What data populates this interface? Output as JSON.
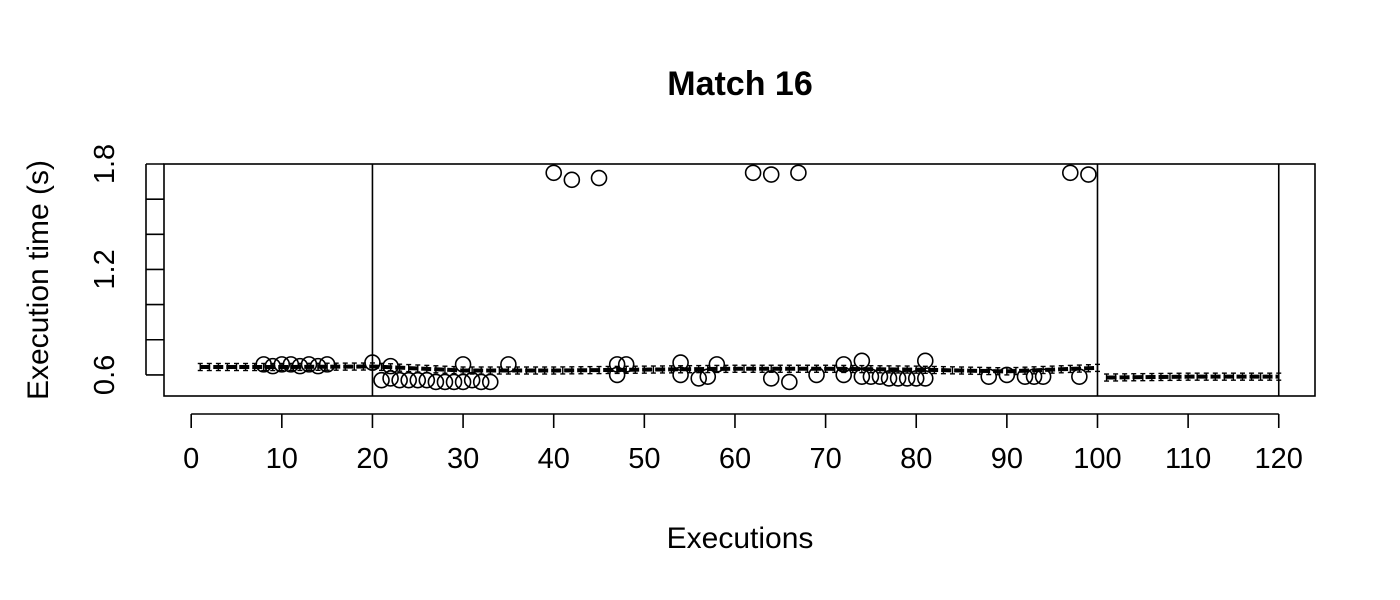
{
  "chart_data": {
    "type": "scatter",
    "title": "Match 16",
    "xlabel": "Executions",
    "ylabel": "Execution time (s)",
    "xlim": [
      -3,
      124
    ],
    "ylim": [
      0.48,
      1.8
    ],
    "x_ticks": [
      0,
      10,
      20,
      30,
      40,
      50,
      60,
      70,
      80,
      90,
      100,
      110,
      120
    ],
    "y_ticks": [
      0.6,
      0.8,
      1.0,
      1.2,
      1.4,
      1.6,
      1.8
    ],
    "y_tick_labels": [
      "0.6",
      "",
      "",
      "1.2",
      "",
      "",
      "1.8"
    ],
    "grid": false,
    "phase_boundaries": [
      20,
      100,
      120
    ],
    "series": [
      {
        "values_type": "observations",
        "points": [
          [
            8,
            0.66
          ],
          [
            9,
            0.65
          ],
          [
            10,
            0.66
          ],
          [
            11,
            0.66
          ],
          [
            12,
            0.65
          ],
          [
            13,
            0.66
          ],
          [
            14,
            0.65
          ],
          [
            15,
            0.66
          ],
          [
            20,
            0.67
          ],
          [
            21,
            0.57
          ],
          [
            22,
            0.65
          ],
          [
            22,
            0.58
          ],
          [
            23,
            0.57
          ],
          [
            24,
            0.57
          ],
          [
            25,
            0.57
          ],
          [
            26,
            0.57
          ],
          [
            27,
            0.56
          ],
          [
            28,
            0.56
          ],
          [
            29,
            0.56
          ],
          [
            30,
            0.66
          ],
          [
            30,
            0.56
          ],
          [
            31,
            0.57
          ],
          [
            32,
            0.56
          ],
          [
            33,
            0.56
          ],
          [
            35,
            0.66
          ],
          [
            40,
            1.75
          ],
          [
            42,
            1.71
          ],
          [
            45,
            1.72
          ],
          [
            47,
            0.66
          ],
          [
            47,
            0.6
          ],
          [
            48,
            0.66
          ],
          [
            54,
            0.67
          ],
          [
            54,
            0.6
          ],
          [
            56,
            0.58
          ],
          [
            57,
            0.59
          ],
          [
            58,
            0.66
          ],
          [
            62,
            1.75
          ],
          [
            64,
            1.74
          ],
          [
            64,
            0.58
          ],
          [
            66,
            0.56
          ],
          [
            67,
            1.75
          ],
          [
            69,
            0.6
          ],
          [
            72,
            0.66
          ],
          [
            72,
            0.6
          ],
          [
            74,
            0.68
          ],
          [
            74,
            0.59
          ],
          [
            75,
            0.59
          ],
          [
            76,
            0.59
          ],
          [
            77,
            0.58
          ],
          [
            78,
            0.58
          ],
          [
            79,
            0.58
          ],
          [
            80,
            0.58
          ],
          [
            81,
            0.68
          ],
          [
            81,
            0.58
          ],
          [
            88,
            0.59
          ],
          [
            90,
            0.6
          ],
          [
            92,
            0.59
          ],
          [
            93,
            0.59
          ],
          [
            94,
            0.59
          ],
          [
            97,
            1.75
          ],
          [
            98,
            0.59
          ],
          [
            99,
            1.74
          ]
        ]
      },
      {
        "values_type": "running_mean",
        "points": [
          [
            1,
            0.645
          ],
          [
            10,
            0.645
          ],
          [
            20,
            0.648
          ],
          [
            30,
            0.625
          ],
          [
            40,
            0.625
          ],
          [
            50,
            0.63
          ],
          [
            60,
            0.635
          ],
          [
            70,
            0.635
          ],
          [
            80,
            0.63
          ],
          [
            90,
            0.62
          ],
          [
            100,
            0.64
          ],
          [
            101,
            0.585
          ],
          [
            110,
            0.59
          ],
          [
            120,
            0.59
          ]
        ],
        "error_half_width": 0.02
      }
    ]
  }
}
